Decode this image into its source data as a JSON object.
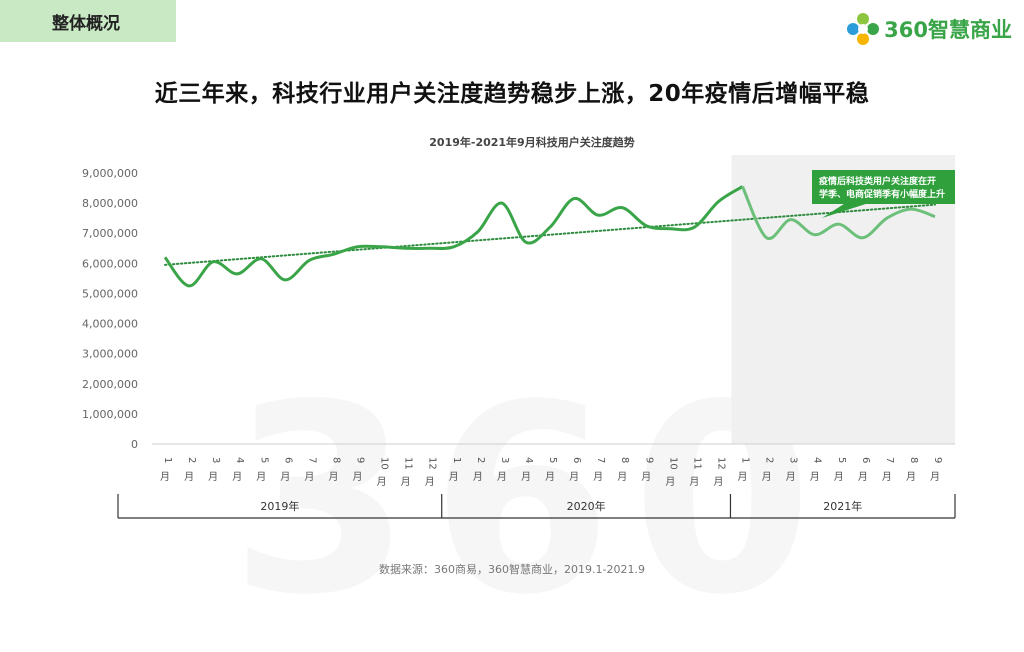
{
  "header": {
    "section_label": "整体概况",
    "logo_text": "360智慧商业",
    "headline": "近三年来，科技行业用户关注度趋势稳步上涨，20年疫情后增幅平稳"
  },
  "footer": {
    "source": "数据来源：360商易，360智慧商业，2019.1-2021.9"
  },
  "colors": {
    "line": "#3aa548",
    "line_light": "#6cc07a",
    "trend": "#2e8b3e",
    "shade": "#f0f0f0",
    "annotation_bg": "#2fa03c"
  },
  "chart_data": {
    "type": "line",
    "title": "2019年-2021年9月科技用户关注度趋势",
    "xlabel": "",
    "ylabel": "",
    "ylim": [
      0,
      9000000
    ],
    "yticks": [
      "0",
      "1,000,000",
      "2,000,000",
      "3,000,000",
      "4,000,000",
      "5,000,000",
      "6,000,000",
      "7,000,000",
      "8,000,000",
      "9,000,000"
    ],
    "categories": [
      "1月",
      "2月",
      "3月",
      "4月",
      "5月",
      "6月",
      "7月",
      "8月",
      "9月",
      "10月",
      "11月",
      "12月",
      "1月",
      "2月",
      "3月",
      "4月",
      "5月",
      "6月",
      "7月",
      "8月",
      "9月",
      "10月",
      "11月",
      "12月",
      "1月",
      "2月",
      "3月",
      "4月",
      "5月",
      "6月",
      "7月",
      "8月",
      "9月"
    ],
    "groups": [
      {
        "label": "2019年",
        "start": 0,
        "end": 11
      },
      {
        "label": "2020年",
        "start": 12,
        "end": 23
      },
      {
        "label": "2021年",
        "start": 24,
        "end": 32
      }
    ],
    "series": [
      {
        "values": [
          6200000,
          5250000,
          6050000,
          5650000,
          6150000,
          5450000,
          6100000,
          6300000,
          6550000,
          6550000,
          6500000,
          6500000,
          6550000,
          7050000,
          8000000,
          6700000,
          7200000,
          8150000,
          7600000,
          7850000,
          7250000,
          7150000,
          7200000,
          8050000,
          8550000,
          6850000,
          7450000,
          6950000,
          7300000,
          6850000,
          7500000,
          7800000,
          7550000
        ]
      }
    ],
    "trendline": {
      "style": "dotted",
      "start_value": 5950000,
      "end_value": 7950000
    },
    "highlight": {
      "start_index": 24,
      "end_index": 32,
      "label": "疫情后科技类用户关注度在开学季、电商促销季有小幅度上升"
    },
    "grid": false,
    "legend": "none"
  }
}
